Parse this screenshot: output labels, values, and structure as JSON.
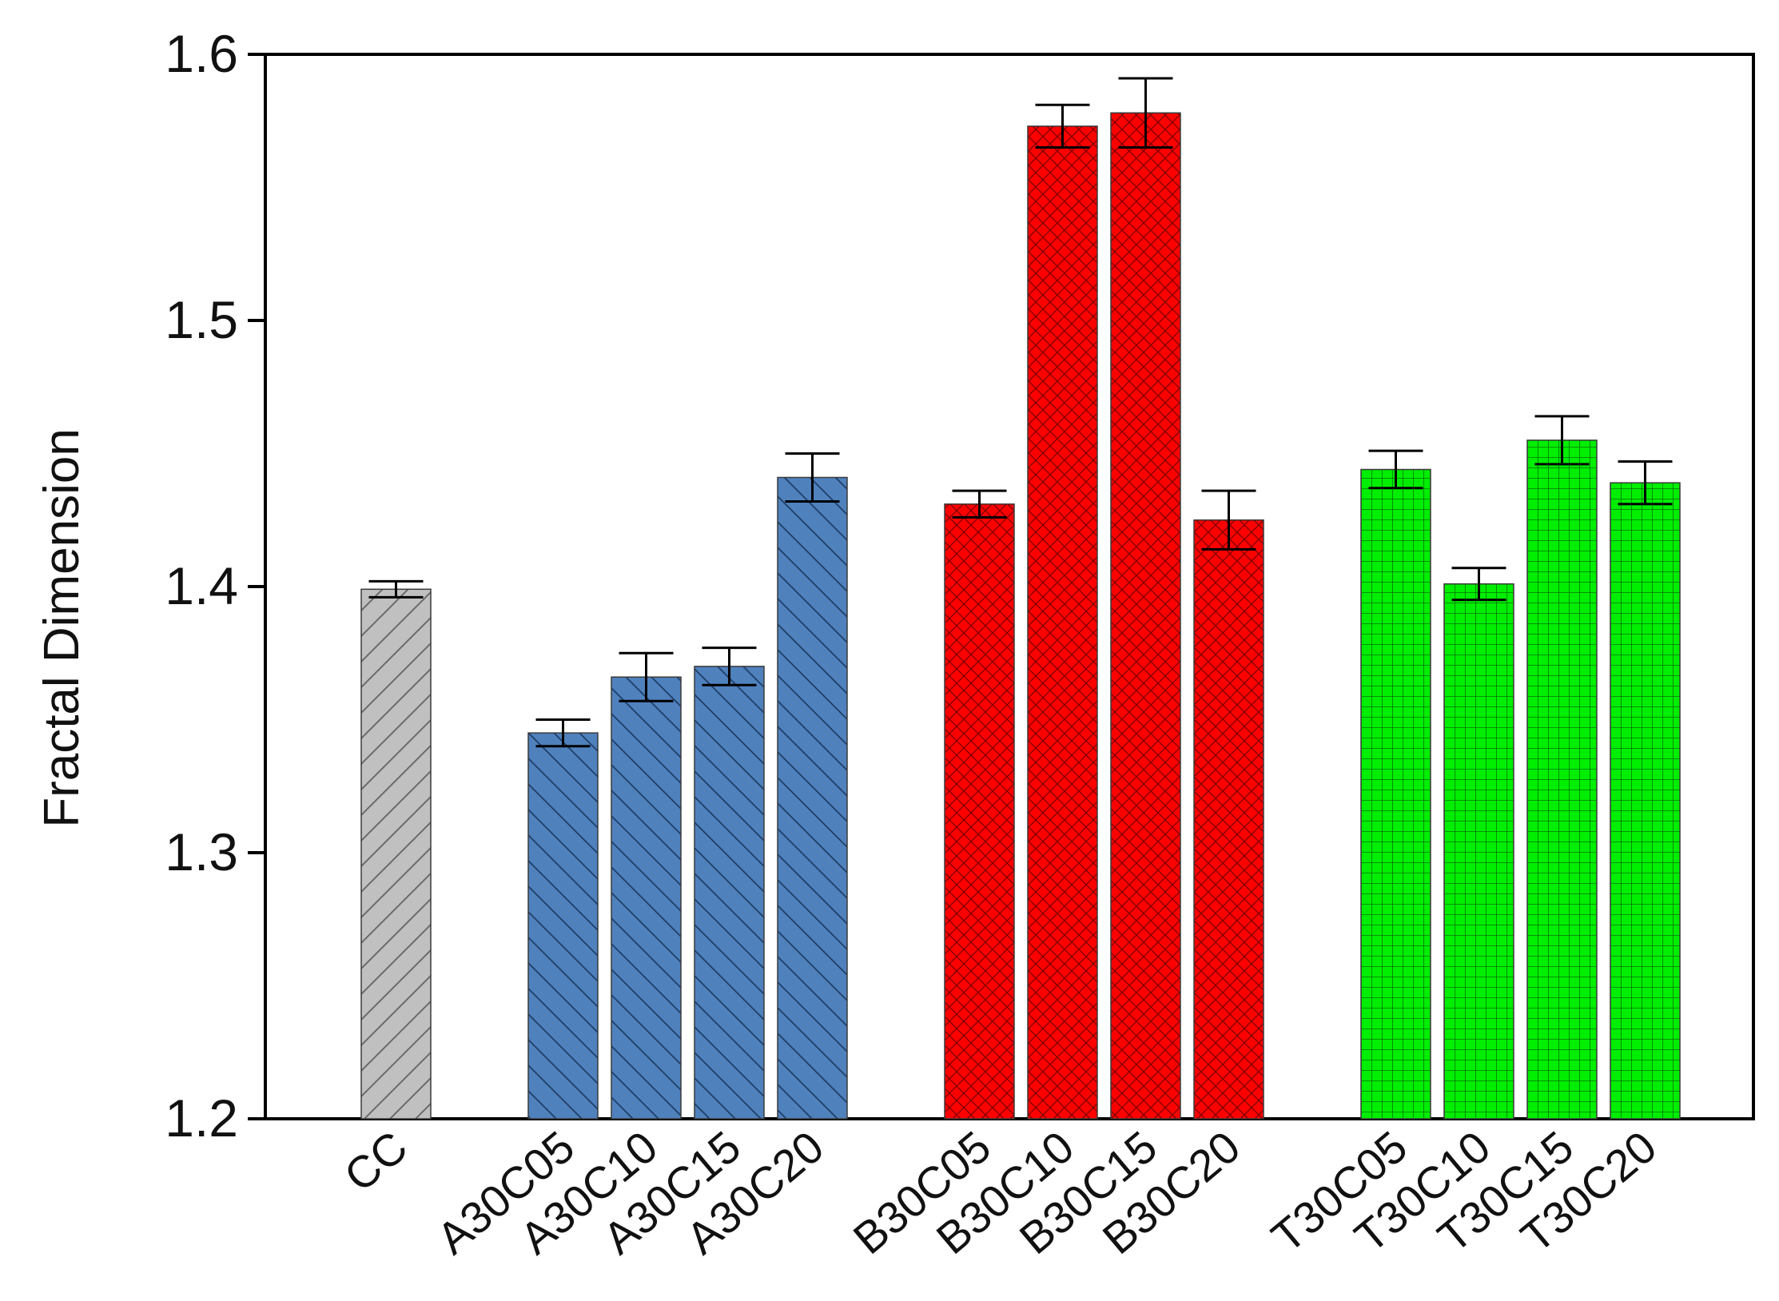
{
  "chart_data": {
    "type": "bar",
    "title": "",
    "xlabel": "",
    "ylabel": "Fractal Dimension",
    "ylim": [
      1.2,
      1.6
    ],
    "yticks": [
      "1.2",
      "1.3",
      "1.4",
      "1.5",
      "1.6"
    ],
    "grid": false,
    "legend": "none",
    "groups": [
      {
        "color": "#c0c0c0",
        "hatch": "forward-diagonal",
        "bars": [
          {
            "category": "CC",
            "value": 1.399,
            "error": 0.003
          }
        ]
      },
      {
        "color": "#4f81bd",
        "hatch": "back-diagonal",
        "bars": [
          {
            "category": "A30C05",
            "value": 1.345,
            "error": 0.005
          },
          {
            "category": "A30C10",
            "value": 1.366,
            "error": 0.009
          },
          {
            "category": "A30C15",
            "value": 1.37,
            "error": 0.007
          },
          {
            "category": "A30C20",
            "value": 1.441,
            "error": 0.009
          }
        ]
      },
      {
        "color": "#ff0000",
        "hatch": "cross-diagonal",
        "bars": [
          {
            "category": "B30C05",
            "value": 1.431,
            "error": 0.005
          },
          {
            "category": "B30C10",
            "value": 1.573,
            "error": 0.008
          },
          {
            "category": "B30C15",
            "value": 1.578,
            "error": 0.013
          },
          {
            "category": "B30C20",
            "value": 1.425,
            "error": 0.011
          }
        ]
      },
      {
        "color": "#00ee00",
        "hatch": "grid",
        "bars": [
          {
            "category": "T30C05",
            "value": 1.444,
            "error": 0.007
          },
          {
            "category": "T30C10",
            "value": 1.401,
            "error": 0.006
          },
          {
            "category": "T30C15",
            "value": 1.455,
            "error": 0.009
          },
          {
            "category": "T30C20",
            "value": 1.439,
            "error": 0.008
          }
        ]
      }
    ]
  }
}
